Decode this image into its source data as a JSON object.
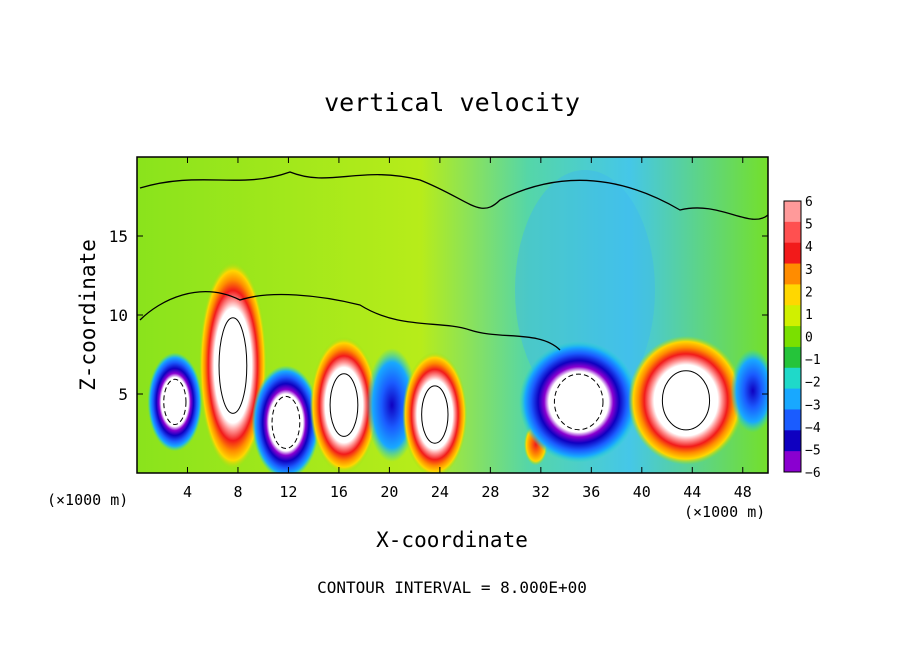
{
  "chart_data": {
    "type": "heatmap",
    "title": "vertical velocity",
    "xlabel": "X-coordinate",
    "ylabel": "Z-coordinate",
    "x_unit_left": "(×1000 m)",
    "x_unit_right": "(×1000 m)",
    "footer": "CONTOUR INTERVAL = 8.000E+00",
    "xlim": [
      0,
      50
    ],
    "ylim": [
      0,
      20
    ],
    "x_ticks": [
      "4",
      "8",
      "12",
      "16",
      "20",
      "24",
      "28",
      "32",
      "36",
      "40",
      "44",
      "48"
    ],
    "y_ticks": [
      "5",
      "10",
      "15"
    ],
    "colorbar": {
      "labels": [
        "6",
        "5",
        "4",
        "3",
        "2",
        "1",
        "0",
        "−1",
        "−2",
        "−3",
        "−4",
        "−5",
        "−6"
      ],
      "colors": [
        "#ff9a9a",
        "#ff5050",
        "#f21a1a",
        "#ff8c00",
        "#ffd700",
        "#d0f000",
        "#7ae000",
        "#25c43a",
        "#1fd9c9",
        "#18a8ff",
        "#1a5cff",
        "#0f00c0",
        "#8a00d0"
      ]
    },
    "cells": [
      {
        "x": 3,
        "z": 4.5,
        "rx": 1.6,
        "rz": 2.6,
        "value": -6
      },
      {
        "x": 7.6,
        "z": 6.8,
        "rx": 2.0,
        "rz": 5.5,
        "value": 6
      },
      {
        "x": 11.8,
        "z": 3.2,
        "rx": 2.0,
        "rz": 3.0,
        "value": -6
      },
      {
        "x": 16.4,
        "z": 4.3,
        "rx": 2.0,
        "rz": 3.6,
        "value": 6
      },
      {
        "x": 20.2,
        "z": 4.3,
        "rx": 1.5,
        "rz": 3.0,
        "value": -5
      },
      {
        "x": 23.6,
        "z": 3.7,
        "rx": 1.9,
        "rz": 3.3,
        "value": 6
      },
      {
        "x": 31.6,
        "z": 1.8,
        "rx": 0.7,
        "rz": 1.1,
        "value": 4
      },
      {
        "x": 35.0,
        "z": 4.5,
        "rx": 3.5,
        "rz": 3.2,
        "value": -6
      },
      {
        "x": 43.5,
        "z": 4.6,
        "rx": 3.4,
        "rz": 3.4,
        "value": 6
      },
      {
        "x": 48.8,
        "z": 5.2,
        "rx": 1.3,
        "rz": 2.2,
        "value": -5
      }
    ]
  }
}
